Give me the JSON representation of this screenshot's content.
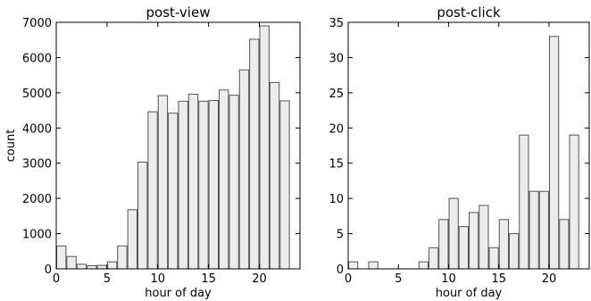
{
  "chart_data": [
    {
      "type": "bar",
      "title": "post-view",
      "xlabel": "hour of day",
      "ylabel": "count",
      "x": [
        0,
        1,
        2,
        3,
        4,
        5,
        6,
        7,
        8,
        9,
        10,
        11,
        12,
        13,
        14,
        15,
        16,
        17,
        18,
        19,
        20,
        21,
        22
      ],
      "values": [
        650,
        350,
        130,
        90,
        100,
        200,
        650,
        1680,
        3030,
        4460,
        4920,
        4420,
        4760,
        4960,
        4760,
        4780,
        5080,
        4930,
        5650,
        6520,
        6900,
        5290,
        4770
      ],
      "xlim": [
        0,
        24
      ],
      "ylim": [
        0,
        7000
      ],
      "xticks": [
        "0",
        "5",
        "10",
        "15",
        "20"
      ],
      "yticks": [
        "0",
        "1000",
        "2000",
        "3000",
        "4000",
        "5000",
        "6000",
        "7000"
      ],
      "grid": false
    },
    {
      "type": "bar",
      "title": "post-click",
      "xlabel": "hour of day",
      "ylabel": "",
      "x": [
        0,
        1,
        2,
        3,
        4,
        5,
        6,
        7,
        8,
        9,
        10,
        11,
        12,
        13,
        14,
        15,
        16,
        17,
        18,
        19,
        20,
        21,
        22
      ],
      "values": [
        1,
        0,
        1,
        0,
        0,
        0,
        0,
        1,
        3,
        7,
        10,
        6,
        8,
        9,
        3,
        7,
        5,
        19,
        11,
        11,
        33,
        7,
        19
      ],
      "xlim": [
        0,
        24
      ],
      "ylim": [
        0,
        35
      ],
      "xticks": [
        "0",
        "5",
        "10",
        "15",
        "20"
      ],
      "yticks": [
        "0",
        "5",
        "10",
        "15",
        "20",
        "25",
        "30",
        "35"
      ],
      "grid": false
    }
  ]
}
